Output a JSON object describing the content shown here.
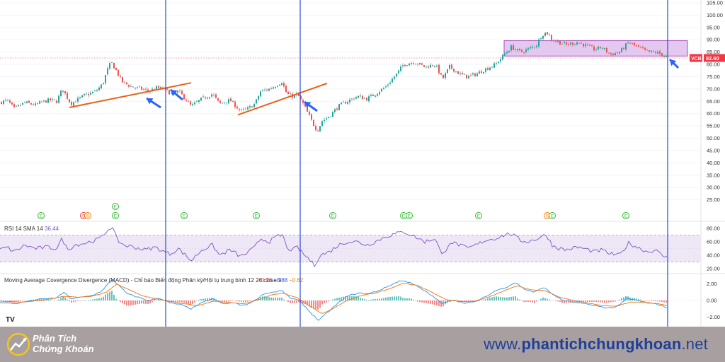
{
  "chart_data": [
    {
      "type": "candlestick",
      "ticker": "VCB",
      "last_price_label": "82.60",
      "ylim": [
        20,
        105
      ],
      "yticks": [
        "25.00",
        "30.00",
        "35.00",
        "40.00",
        "45.00",
        "50.00",
        "55.00",
        "60.00",
        "65.00",
        "70.00",
        "75.00",
        "80.00",
        "85.00",
        "90.00",
        "95.00",
        "100.00",
        "105.00"
      ],
      "close_path": [
        [
          0,
          64.5
        ],
        [
          10,
          65.5
        ],
        [
          20,
          62
        ],
        [
          35,
          64.5
        ],
        [
          50,
          63.5
        ],
        [
          60,
          64.8
        ],
        [
          70,
          65.5
        ],
        [
          80,
          65
        ],
        [
          88,
          70
        ],
        [
          100,
          64
        ],
        [
          110,
          65.8
        ],
        [
          120,
          67.5
        ],
        [
          135,
          69
        ],
        [
          145,
          72
        ],
        [
          152,
          78
        ],
        [
          157,
          81
        ],
        [
          165,
          77
        ],
        [
          172,
          73
        ],
        [
          185,
          71
        ],
        [
          200,
          70
        ],
        [
          210,
          69
        ],
        [
          220,
          70.5
        ],
        [
          232,
          70
        ],
        [
          242,
          68
        ],
        [
          252,
          69
        ],
        [
          262,
          66
        ],
        [
          270,
          63
        ],
        [
          285,
          66
        ],
        [
          300,
          68
        ],
        [
          310,
          64
        ],
        [
          325,
          65.5
        ],
        [
          340,
          61
        ],
        [
          350,
          62
        ],
        [
          360,
          64
        ],
        [
          368,
          69
        ],
        [
          380,
          70
        ],
        [
          390,
          71.5
        ],
        [
          398,
          73
        ],
        [
          405,
          68
        ],
        [
          414,
          67
        ],
        [
          420,
          68
        ],
        [
          428,
          64
        ],
        [
          435,
          60
        ],
        [
          442,
          56
        ],
        [
          448,
          53
        ],
        [
          455,
          57
        ],
        [
          465,
          59
        ],
        [
          478,
          63
        ],
        [
          490,
          65
        ],
        [
          505,
          67
        ],
        [
          518,
          66
        ],
        [
          530,
          68
        ],
        [
          545,
          71
        ],
        [
          560,
          76
        ],
        [
          570,
          80
        ],
        [
          585,
          81
        ],
        [
          600,
          79
        ],
        [
          615,
          80
        ],
        [
          625,
          74
        ],
        [
          635,
          79
        ],
        [
          650,
          76
        ],
        [
          660,
          75
        ],
        [
          672,
          76
        ],
        [
          685,
          78
        ],
        [
          700,
          80
        ],
        [
          712,
          84
        ],
        [
          722,
          87
        ],
        [
          735,
          85
        ],
        [
          745,
          86
        ],
        [
          758,
          88
        ],
        [
          765,
          92
        ],
        [
          772,
          93
        ],
        [
          780,
          90
        ],
        [
          790,
          89
        ],
        [
          800,
          88
        ],
        [
          815,
          89
        ],
        [
          825,
          88
        ],
        [
          840,
          86
        ],
        [
          850,
          87
        ],
        [
          862,
          84
        ],
        [
          875,
          85
        ],
        [
          888,
          89
        ],
        [
          900,
          87
        ],
        [
          915,
          85
        ],
        [
          925,
          85
        ],
        [
          935,
          84
        ],
        [
          943,
          82.6
        ]
      ]
    },
    {
      "type": "line",
      "title": "RSI 14 SMA 14",
      "value_label": "36.44",
      "ylim": [
        15,
        85
      ],
      "yticks": [
        "20.00",
        "40.00",
        "60.00",
        "80.00"
      ],
      "bands": [
        30,
        70
      ],
      "points": [
        [
          0,
          48
        ],
        [
          10,
          52
        ],
        [
          20,
          45
        ],
        [
          35,
          55
        ],
        [
          50,
          50
        ],
        [
          65,
          52
        ],
        [
          80,
          50
        ],
        [
          88,
          65
        ],
        [
          95,
          48
        ],
        [
          105,
          55
        ],
        [
          120,
          58
        ],
        [
          135,
          62
        ],
        [
          145,
          68
        ],
        [
          152,
          78
        ],
        [
          158,
          82
        ],
        [
          166,
          62
        ],
        [
          175,
          55
        ],
        [
          190,
          52
        ],
        [
          205,
          48
        ],
        [
          220,
          52
        ],
        [
          232,
          45
        ],
        [
          240,
          42
        ],
        [
          252,
          50
        ],
        [
          262,
          40
        ],
        [
          270,
          32
        ],
        [
          285,
          48
        ],
        [
          300,
          55
        ],
        [
          310,
          40
        ],
        [
          325,
          48
        ],
        [
          340,
          38
        ],
        [
          350,
          44
        ],
        [
          360,
          52
        ],
        [
          368,
          65
        ],
        [
          380,
          60
        ],
        [
          392,
          68
        ],
        [
          400,
          70
        ],
        [
          405,
          50
        ],
        [
          414,
          48
        ],
        [
          420,
          52
        ],
        [
          428,
          42
        ],
        [
          436,
          35
        ],
        [
          444,
          25
        ],
        [
          452,
          40
        ],
        [
          465,
          45
        ],
        [
          478,
          55
        ],
        [
          490,
          60
        ],
        [
          505,
          60
        ],
        [
          518,
          55
        ],
        [
          530,
          60
        ],
        [
          545,
          68
        ],
        [
          560,
          72
        ],
        [
          570,
          75
        ],
        [
          585,
          68
        ],
        [
          600,
          60
        ],
        [
          615,
          65
        ],
        [
          625,
          38
        ],
        [
          635,
          60
        ],
        [
          650,
          55
        ],
        [
          660,
          50
        ],
        [
          672,
          55
        ],
        [
          685,
          62
        ],
        [
          700,
          65
        ],
        [
          712,
          70
        ],
        [
          722,
          72
        ],
        [
          735,
          62
        ],
        [
          745,
          60
        ],
        [
          758,
          64
        ],
        [
          765,
          68
        ],
        [
          772,
          70
        ],
        [
          780,
          55
        ],
        [
          790,
          50
        ],
        [
          800,
          48
        ],
        [
          815,
          52
        ],
        [
          825,
          50
        ],
        [
          840,
          45
        ],
        [
          850,
          48
        ],
        [
          862,
          42
        ],
        [
          875,
          40
        ],
        [
          888,
          58
        ],
        [
          900,
          52
        ],
        [
          915,
          45
        ],
        [
          925,
          48
        ],
        [
          935,
          40
        ],
        [
          943,
          36.44
        ]
      ]
    },
    {
      "type": "macd",
      "title": "Moving Average Covergence Divergence (MACD) - Chỉ báo Biến động Phân kỳ/Hội tụ trung bình 12 26 close 9",
      "values": [
        "−0.26",
        "−0.88",
        "−0.62"
      ],
      "value_colors": [
        "#f23645",
        "#2962ff",
        "#f57c00"
      ],
      "ylim": [
        -3,
        3
      ],
      "yticks": [
        "2.00",
        "0.00",
        "−2.00"
      ],
      "macd_points": [
        [
          0,
          -0.2
        ],
        [
          20,
          -0.4
        ],
        [
          40,
          -0.1
        ],
        [
          60,
          0.2
        ],
        [
          80,
          0.3
        ],
        [
          90,
          1.0
        ],
        [
          100,
          0.2
        ],
        [
          115,
          0.4
        ],
        [
          130,
          0.6
        ],
        [
          145,
          1.2
        ],
        [
          158,
          2.6
        ],
        [
          168,
          1.8
        ],
        [
          180,
          0.8
        ],
        [
          195,
          0.4
        ],
        [
          210,
          0.0
        ],
        [
          225,
          0.3
        ],
        [
          240,
          -0.3
        ],
        [
          255,
          -0.5
        ],
        [
          270,
          -1.0
        ],
        [
          285,
          -0.3
        ],
        [
          300,
          0.2
        ],
        [
          315,
          -0.4
        ],
        [
          330,
          -0.3
        ],
        [
          345,
          -0.6
        ],
        [
          360,
          0.0
        ],
        [
          372,
          0.8
        ],
        [
          385,
          1.0
        ],
        [
          398,
          1.2
        ],
        [
          410,
          0.3
        ],
        [
          422,
          0.0
        ],
        [
          432,
          -0.8
        ],
        [
          440,
          -1.6
        ],
        [
          450,
          -2.4
        ],
        [
          462,
          -1.5
        ],
        [
          475,
          -0.5
        ],
        [
          490,
          0.5
        ],
        [
          505,
          0.9
        ],
        [
          520,
          0.8
        ],
        [
          535,
          1.2
        ],
        [
          550,
          1.8
        ],
        [
          565,
          2.4
        ],
        [
          580,
          2.2
        ],
        [
          595,
          1.4
        ],
        [
          610,
          0.6
        ],
        [
          625,
          -0.4
        ],
        [
          640,
          0.1
        ],
        [
          655,
          -0.3
        ],
        [
          670,
          -0.2
        ],
        [
          685,
          0.4
        ],
        [
          700,
          1.2
        ],
        [
          715,
          1.6
        ],
        [
          728,
          2.2
        ],
        [
          740,
          1.4
        ],
        [
          755,
          1.0
        ],
        [
          768,
          1.6
        ],
        [
          780,
          0.8
        ],
        [
          795,
          0.0
        ],
        [
          810,
          -0.2
        ],
        [
          825,
          -0.4
        ],
        [
          840,
          -0.6
        ],
        [
          855,
          -0.9
        ],
        [
          870,
          -0.8
        ],
        [
          885,
          0.2
        ],
        [
          900,
          0.0
        ],
        [
          915,
          -0.3
        ],
        [
          930,
          -0.5
        ],
        [
          943,
          -0.88
        ]
      ],
      "signal_points": [
        [
          0,
          -0.1
        ],
        [
          30,
          -0.2
        ],
        [
          60,
          0.0
        ],
        [
          90,
          0.5
        ],
        [
          110,
          0.4
        ],
        [
          130,
          0.5
        ],
        [
          150,
          1.0
        ],
        [
          165,
          2.0
        ],
        [
          180,
          1.4
        ],
        [
          200,
          0.6
        ],
        [
          220,
          0.2
        ],
        [
          240,
          -0.1
        ],
        [
          260,
          -0.4
        ],
        [
          280,
          -0.6
        ],
        [
          300,
          -0.1
        ],
        [
          320,
          -0.2
        ],
        [
          345,
          -0.4
        ],
        [
          365,
          0.1
        ],
        [
          385,
          0.7
        ],
        [
          400,
          0.9
        ],
        [
          420,
          0.3
        ],
        [
          440,
          -0.8
        ],
        [
          455,
          -1.6
        ],
        [
          470,
          -1.0
        ],
        [
          490,
          0.0
        ],
        [
          510,
          0.6
        ],
        [
          530,
          0.9
        ],
        [
          550,
          1.4
        ],
        [
          570,
          2.1
        ],
        [
          590,
          1.8
        ],
        [
          610,
          1.0
        ],
        [
          630,
          0.1
        ],
        [
          650,
          -0.1
        ],
        [
          670,
          -0.1
        ],
        [
          690,
          0.4
        ],
        [
          710,
          1.1
        ],
        [
          730,
          1.8
        ],
        [
          750,
          1.3
        ],
        [
          770,
          1.2
        ],
        [
          790,
          0.4
        ],
        [
          810,
          0.0
        ],
        [
          830,
          -0.3
        ],
        [
          850,
          -0.6
        ],
        [
          870,
          -0.7
        ],
        [
          890,
          -0.2
        ],
        [
          910,
          -0.2
        ],
        [
          930,
          -0.4
        ],
        [
          943,
          -0.62
        ]
      ]
    }
  ],
  "footer": {
    "logo_line1": "Phân Tích",
    "logo_line2": "Chứng Khoán",
    "url_prefix": "www.",
    "url_main": "phantichchungkhoan",
    "url_suffix": ".net"
  },
  "colors": {
    "up": "#26a69a",
    "down": "#ef5350",
    "trendline": "#e8631a",
    "vline": "#2a4bd7",
    "arrow": "#2962ff",
    "zone_fill": "#d9b7ea",
    "zone_stroke": "#9c27b0",
    "rsi_line": "#7e57c2",
    "rsi_band": "#ede7f6",
    "macd_line": "#2196f3",
    "signal_line": "#ff6d00",
    "label_red": "#f23645",
    "event_green": "#2eb82e",
    "event_orange": "#f57c00",
    "event_red": "#e53935",
    "footer_bg": "#a8a0a0",
    "url_blue": "#1f3f9a"
  }
}
